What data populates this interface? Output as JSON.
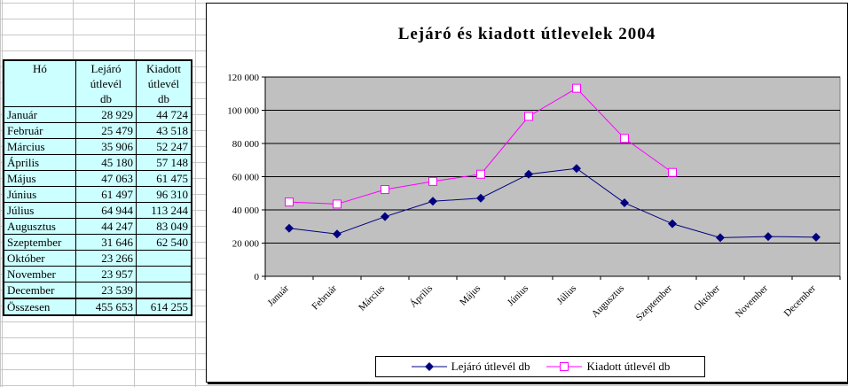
{
  "table": {
    "header": {
      "month": "Hó",
      "expiring": [
        "Lejáró",
        "útlevél",
        "db"
      ],
      "issued": [
        "Kiadott",
        "útlevél",
        "db"
      ]
    },
    "rows": [
      {
        "month": "Január",
        "expiring": "28 929",
        "issued": "44 724"
      },
      {
        "month": "Február",
        "expiring": "25 479",
        "issued": "43 518"
      },
      {
        "month": "Március",
        "expiring": "35 906",
        "issued": "52 247"
      },
      {
        "month": "Április",
        "expiring": "45 180",
        "issued": "57 148"
      },
      {
        "month": "Május",
        "expiring": "47 063",
        "issued": "61 475"
      },
      {
        "month": "Június",
        "expiring": "61 497",
        "issued": "96 310"
      },
      {
        "month": "Július",
        "expiring": "64 944",
        "issued": "113 244"
      },
      {
        "month": "Augusztus",
        "expiring": "44 247",
        "issued": "83 049"
      },
      {
        "month": "Szeptember",
        "expiring": "31 646",
        "issued": "62 540"
      },
      {
        "month": "Október",
        "expiring": "23 266",
        "issued": ""
      },
      {
        "month": "November",
        "expiring": "23 957",
        "issued": ""
      },
      {
        "month": "December",
        "expiring": "23 539",
        "issued": ""
      }
    ],
    "total": {
      "month": "Összesen",
      "expiring": "455 653",
      "issued": "614 255"
    }
  },
  "chart_data": {
    "type": "line",
    "title": "Lejáró és kiadott útlevelek 2004",
    "categories": [
      "Január",
      "Február",
      "Március",
      "Április",
      "Május",
      "Június",
      "Július",
      "Augusztus",
      "Szeptember",
      "Október",
      "November",
      "December"
    ],
    "series": [
      {
        "name": "Lejáró útlevél db",
        "color": "#000080",
        "marker": "diamond",
        "values": [
          28929,
          25479,
          35906,
          45180,
          47063,
          61497,
          64944,
          44247,
          31646,
          23266,
          23957,
          23539
        ]
      },
      {
        "name": "Kiadott útlevél db",
        "color": "#ff00ff",
        "marker": "square-open",
        "values": [
          44724,
          43518,
          52247,
          57148,
          61475,
          96310,
          113244,
          83049,
          62540,
          null,
          null,
          null
        ]
      }
    ],
    "yticks": [
      "0",
      "20 000",
      "40 000",
      "60 000",
      "80 000",
      "100 000",
      "120 000"
    ],
    "ylim": [
      0,
      120000
    ],
    "grid": true,
    "plot_background": "#c0c0c0",
    "legend_position": "bottom"
  }
}
